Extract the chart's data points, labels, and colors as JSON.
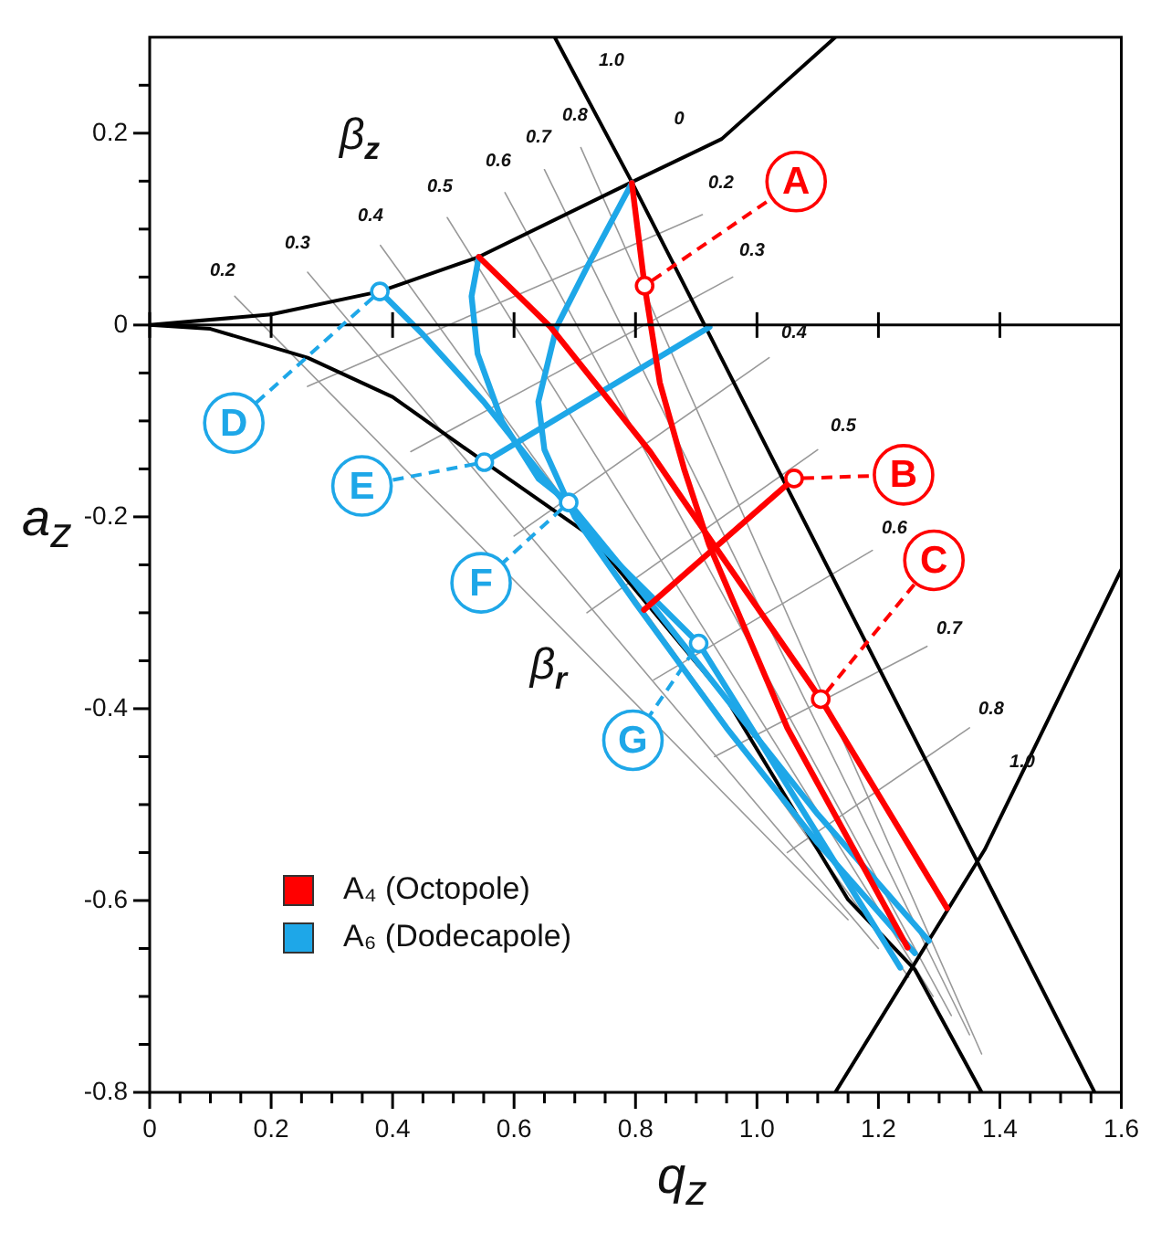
{
  "chart_data": {
    "type": "line",
    "xlabel": "q$_{z}$",
    "ylabel": "a$_{z}$",
    "xlim": [
      0,
      1.6
    ],
    "ylim": [
      -0.8,
      0.3
    ],
    "xticks": [
      0,
      {
        "value": 0.05,
        "label": null
      },
      {
        "value": 0.1,
        "label": null
      },
      {
        "value": 0.15,
        "label": null
      },
      0.2,
      {
        "value": 0.25,
        "label": null
      },
      {
        "value": 0.3,
        "label": null
      },
      {
        "value": 0.35,
        "label": null
      },
      0.4,
      {
        "value": 0.45,
        "label": null
      },
      {
        "value": 0.5,
        "label": null
      },
      {
        "value": 0.55,
        "label": null
      },
      0.6,
      {
        "value": 0.65,
        "label": null
      },
      {
        "value": 0.7,
        "label": null
      },
      {
        "value": 0.75,
        "label": null
      },
      0.8,
      {
        "value": 0.85,
        "label": null
      },
      {
        "value": 0.9,
        "label": null
      },
      {
        "value": 0.95,
        "label": null
      },
      {
        "value": 1,
        "label": "1.0"
      },
      {
        "value": 1.05,
        "label": null
      },
      {
        "value": 1.1,
        "label": null
      },
      {
        "value": 1.15,
        "label": null
      },
      1.2,
      {
        "value": 1.25,
        "label": null
      },
      {
        "value": 1.3,
        "label": null
      },
      {
        "value": 1.35,
        "label": null
      },
      1.4,
      {
        "value": 1.45,
        "label": null
      },
      {
        "value": 1.5,
        "label": null
      },
      {
        "value": 1.55,
        "label": null
      },
      1.6
    ],
    "yticks": [
      -0.8,
      {
        "value": -0.75,
        "label": null
      },
      {
        "value": -0.7,
        "label": null
      },
      {
        "value": -0.65,
        "label": null
      },
      -0.6,
      {
        "value": -0.55,
        "label": null
      },
      {
        "value": -0.5,
        "label": null
      },
      {
        "value": -0.45,
        "label": null
      },
      -0.4,
      {
        "value": -0.35,
        "label": null
      },
      {
        "value": -0.3,
        "label": null
      },
      {
        "value": -0.25,
        "label": null
      },
      -0.2,
      {
        "value": -0.15,
        "label": null
      },
      {
        "value": -0.1,
        "label": null
      },
      {
        "value": -0.05,
        "label": null
      },
      0,
      {
        "value": 0.05,
        "label": null
      },
      {
        "value": 0.1,
        "label": null
      },
      {
        "value": 0.15,
        "label": null
      },
      0.2,
      {
        "value": 0.25,
        "label": null
      }
    ],
    "grid": false,
    "legend": "bottom left",
    "line_style": "solid",
    "ref_lines": [
      {
        "axis": "y",
        "value": 0,
        "color": "#000000"
      }
    ],
    "series": [
      {
        "name": "A₄ (Octopole)",
        "color": "#ff0000",
        "x": [
          0.794,
          0.815,
          0.84,
          0.88,
          0.921,
          1.05,
          1.248
        ],
        "values": [
          0.148,
          0.041,
          -0.06,
          -0.15,
          -0.229,
          -0.42,
          -0.649
        ]
      },
      {
        "color": "#ff0000",
        "x": [
          0.542,
          0.66,
          0.824,
          0.93,
          1.105,
          1.313
        ],
        "values": [
          0.071,
          -0.002,
          -0.132,
          -0.23,
          -0.39,
          -0.608
        ]
      },
      {
        "color": "#ff0000",
        "x": [
          0.814,
          1.061
        ],
        "values": [
          -0.297,
          -0.16
        ]
      },
      {
        "name": "A₆ (Dodecapole)",
        "color": "#1ea7e8",
        "x": [
          0.379,
          0.45,
          0.55,
          0.65,
          0.75,
          0.904,
          1.05,
          1.236
        ],
        "values": [
          0.035,
          -0.01,
          -0.08,
          -0.16,
          -0.235,
          -0.332,
          -0.48,
          -0.67
        ]
      },
      {
        "color": "#1ea7e8",
        "x": [
          0.542,
          0.53,
          0.54,
          0.58,
          0.64,
          0.69,
          0.8,
          0.95,
          1.1,
          1.283
        ],
        "values": [
          0.071,
          0.03,
          -0.03,
          -0.1,
          -0.16,
          -0.185,
          -0.27,
          -0.39,
          -0.51,
          -0.642
        ]
      },
      {
        "color": "#1ea7e8",
        "x": [
          0.794,
          0.72,
          0.67,
          0.64,
          0.65,
          0.7,
          0.8,
          0.95,
          1.1,
          1.26
        ],
        "values": [
          0.148,
          0.06,
          -0.002,
          -0.08,
          -0.13,
          -0.2,
          -0.29,
          -0.42,
          -0.54,
          -0.655
        ]
      },
      {
        "color": "#1ea7e8",
        "x": [
          0.551,
          0.922
        ],
        "values": [
          -0.143,
          -0.002
        ]
      },
      {
        "color": "#000000",
        "x": [
          0,
          0.2,
          0.379,
          0.542,
          0.794,
          0.942,
          1.129
        ],
        "values": [
          0,
          0.011,
          0.035,
          0.071,
          0.149,
          0.194,
          0.3
        ]
      },
      {
        "color": "#000000",
        "x": [
          0,
          0.1,
          0.26,
          0.4,
          0.527,
          0.726,
          0.95,
          1.15,
          1.26,
          1.37
        ],
        "values": [
          0,
          -0.004,
          -0.034,
          -0.075,
          -0.132,
          -0.22,
          -0.39,
          -0.599,
          -0.672,
          -0.8
        ]
      },
      {
        "color": "#000000",
        "x": [
          0.667,
          0.794,
          1.556
        ],
        "values": [
          0.3,
          0.149,
          -0.8
        ]
      },
      {
        "color": "#000000",
        "x": [
          1.129,
          1.375,
          1.6
        ],
        "values": [
          -0.8,
          -0.547,
          -0.255
        ]
      },
      {
        "color": "#999999",
        "x": [
          0.14,
          1.15
        ],
        "values": [
          0.03,
          -0.62
        ]
      },
      {
        "color": "#999999",
        "x": [
          0.26,
          1.2
        ],
        "values": [
          0.055,
          -0.65
        ]
      },
      {
        "color": "#999999",
        "x": [
          0.38,
          1.25
        ],
        "values": [
          0.083,
          -0.68
        ]
      },
      {
        "color": "#999999",
        "x": [
          0.49,
          1.29
        ],
        "values": [
          0.112,
          -0.7
        ]
      },
      {
        "color": "#999999",
        "x": [
          0.585,
          1.32
        ],
        "values": [
          0.138,
          -0.72
        ]
      },
      {
        "color": "#999999",
        "x": [
          0.65,
          1.35
        ],
        "values": [
          0.162,
          -0.74
        ]
      },
      {
        "color": "#999999",
        "x": [
          0.71,
          1.37
        ],
        "values": [
          0.185,
          -0.76
        ]
      },
      {
        "color": "#999999",
        "x": [
          0.91,
          0.26
        ],
        "values": [
          0.115,
          -0.064
        ]
      },
      {
        "color": "#999999",
        "x": [
          0.96,
          0.43
        ],
        "values": [
          0.05,
          -0.132
        ]
      },
      {
        "color": "#999999",
        "x": [
          1.02,
          0.6
        ],
        "values": [
          -0.034,
          -0.22
        ]
      },
      {
        "color": "#999999",
        "x": [
          1.1,
          0.72
        ],
        "values": [
          -0.13,
          -0.3
        ]
      },
      {
        "color": "#999999",
        "x": [
          1.19,
          0.83
        ],
        "values": [
          -0.235,
          -0.37
        ]
      },
      {
        "color": "#999999",
        "x": [
          1.28,
          0.93
        ],
        "values": [
          -0.335,
          -0.45
        ]
      },
      {
        "color": "#999999",
        "x": [
          1.35,
          1.05
        ],
        "values": [
          -0.42,
          -0.55
        ]
      }
    ],
    "annotations": [
      {
        "text": "A",
        "x": 0.815,
        "y": 0.041
      },
      {
        "text": "B",
        "x": 1.061,
        "y": -0.16
      },
      {
        "text": "C",
        "x": 1.105,
        "y": -0.39
      },
      {
        "text": "D",
        "x": 0.379,
        "y": 0.035
      },
      {
        "text": "E",
        "x": 0.551,
        "y": -0.143
      },
      {
        "text": "F",
        "x": 0.69,
        "y": -0.185
      },
      {
        "text": "G",
        "x": 0.904,
        "y": -0.332
      },
      "β$_{z}$",
      "β$_{r}$",
      "1.0",
      "0",
      "0.2",
      "0.3",
      "0.4",
      "0.5",
      "0.6",
      "0.7",
      "0.8",
      "0.2",
      "0.3",
      "0.4",
      "0.5",
      "0.6",
      "0.7",
      "0.8",
      "1.0"
    ]
  }
}
